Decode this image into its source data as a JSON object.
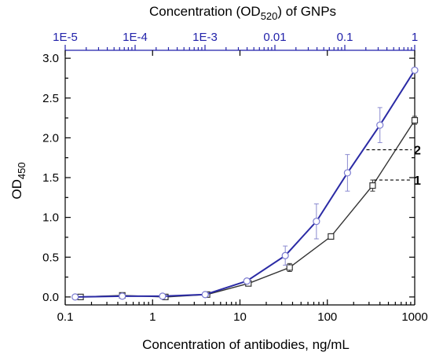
{
  "chart_data": {
    "type": "line",
    "x_axis": {
      "label": "Concentration of antibodies, ng/mL",
      "scale": "log",
      "range": [
        0.1,
        1000
      ],
      "ticks": [
        "0.1",
        "1",
        "10",
        "100",
        "1000"
      ]
    },
    "x2_axis": {
      "label_prefix": "Concentration (OD",
      "label_sub": "520",
      "label_suffix": ") of GNPs",
      "scale": "log",
      "range": [
        1e-05,
        1
      ],
      "ticks": [
        "1E-5",
        "1E-4",
        "1E-3",
        "0.01",
        "0.1",
        "1"
      ],
      "color": "#2222aa"
    },
    "y_axis": {
      "label_main": "OD",
      "label_sub": "450",
      "range": [
        -0.1,
        3.1
      ],
      "ticks": [
        "0.0",
        "0.5",
        "1.0",
        "1.5",
        "2.0",
        "2.5",
        "3.0"
      ]
    },
    "series": [
      {
        "name": "1",
        "color": "#333333",
        "marker": "square",
        "x": [
          0.15,
          0.45,
          1.4,
          4.2,
          12.5,
          37,
          110,
          330,
          1000
        ],
        "y": [
          0.0,
          0.02,
          0.0,
          0.03,
          0.17,
          0.37,
          0.76,
          1.4,
          2.22
        ],
        "err": [
          0.02,
          0.03,
          0.02,
          0.02,
          0.03,
          0.05,
          0.02,
          0.07,
          0.05
        ]
      },
      {
        "name": "2",
        "color": "#2b2ba5",
        "marker": "circle",
        "x": [
          0.13,
          0.45,
          1.3,
          4.0,
          12.0,
          33,
          75,
          170,
          400,
          1000
        ],
        "y": [
          0.0,
          0.01,
          0.01,
          0.03,
          0.2,
          0.52,
          0.95,
          1.56,
          2.16,
          2.85
        ],
        "err": [
          0.01,
          0.01,
          0.01,
          0.01,
          0.03,
          0.12,
          0.22,
          0.23,
          0.22,
          0.02
        ]
      }
    ],
    "annotations": [
      {
        "text": "2",
        "series": "2"
      },
      {
        "text": "1",
        "series": "1"
      }
    ],
    "grid": false
  }
}
